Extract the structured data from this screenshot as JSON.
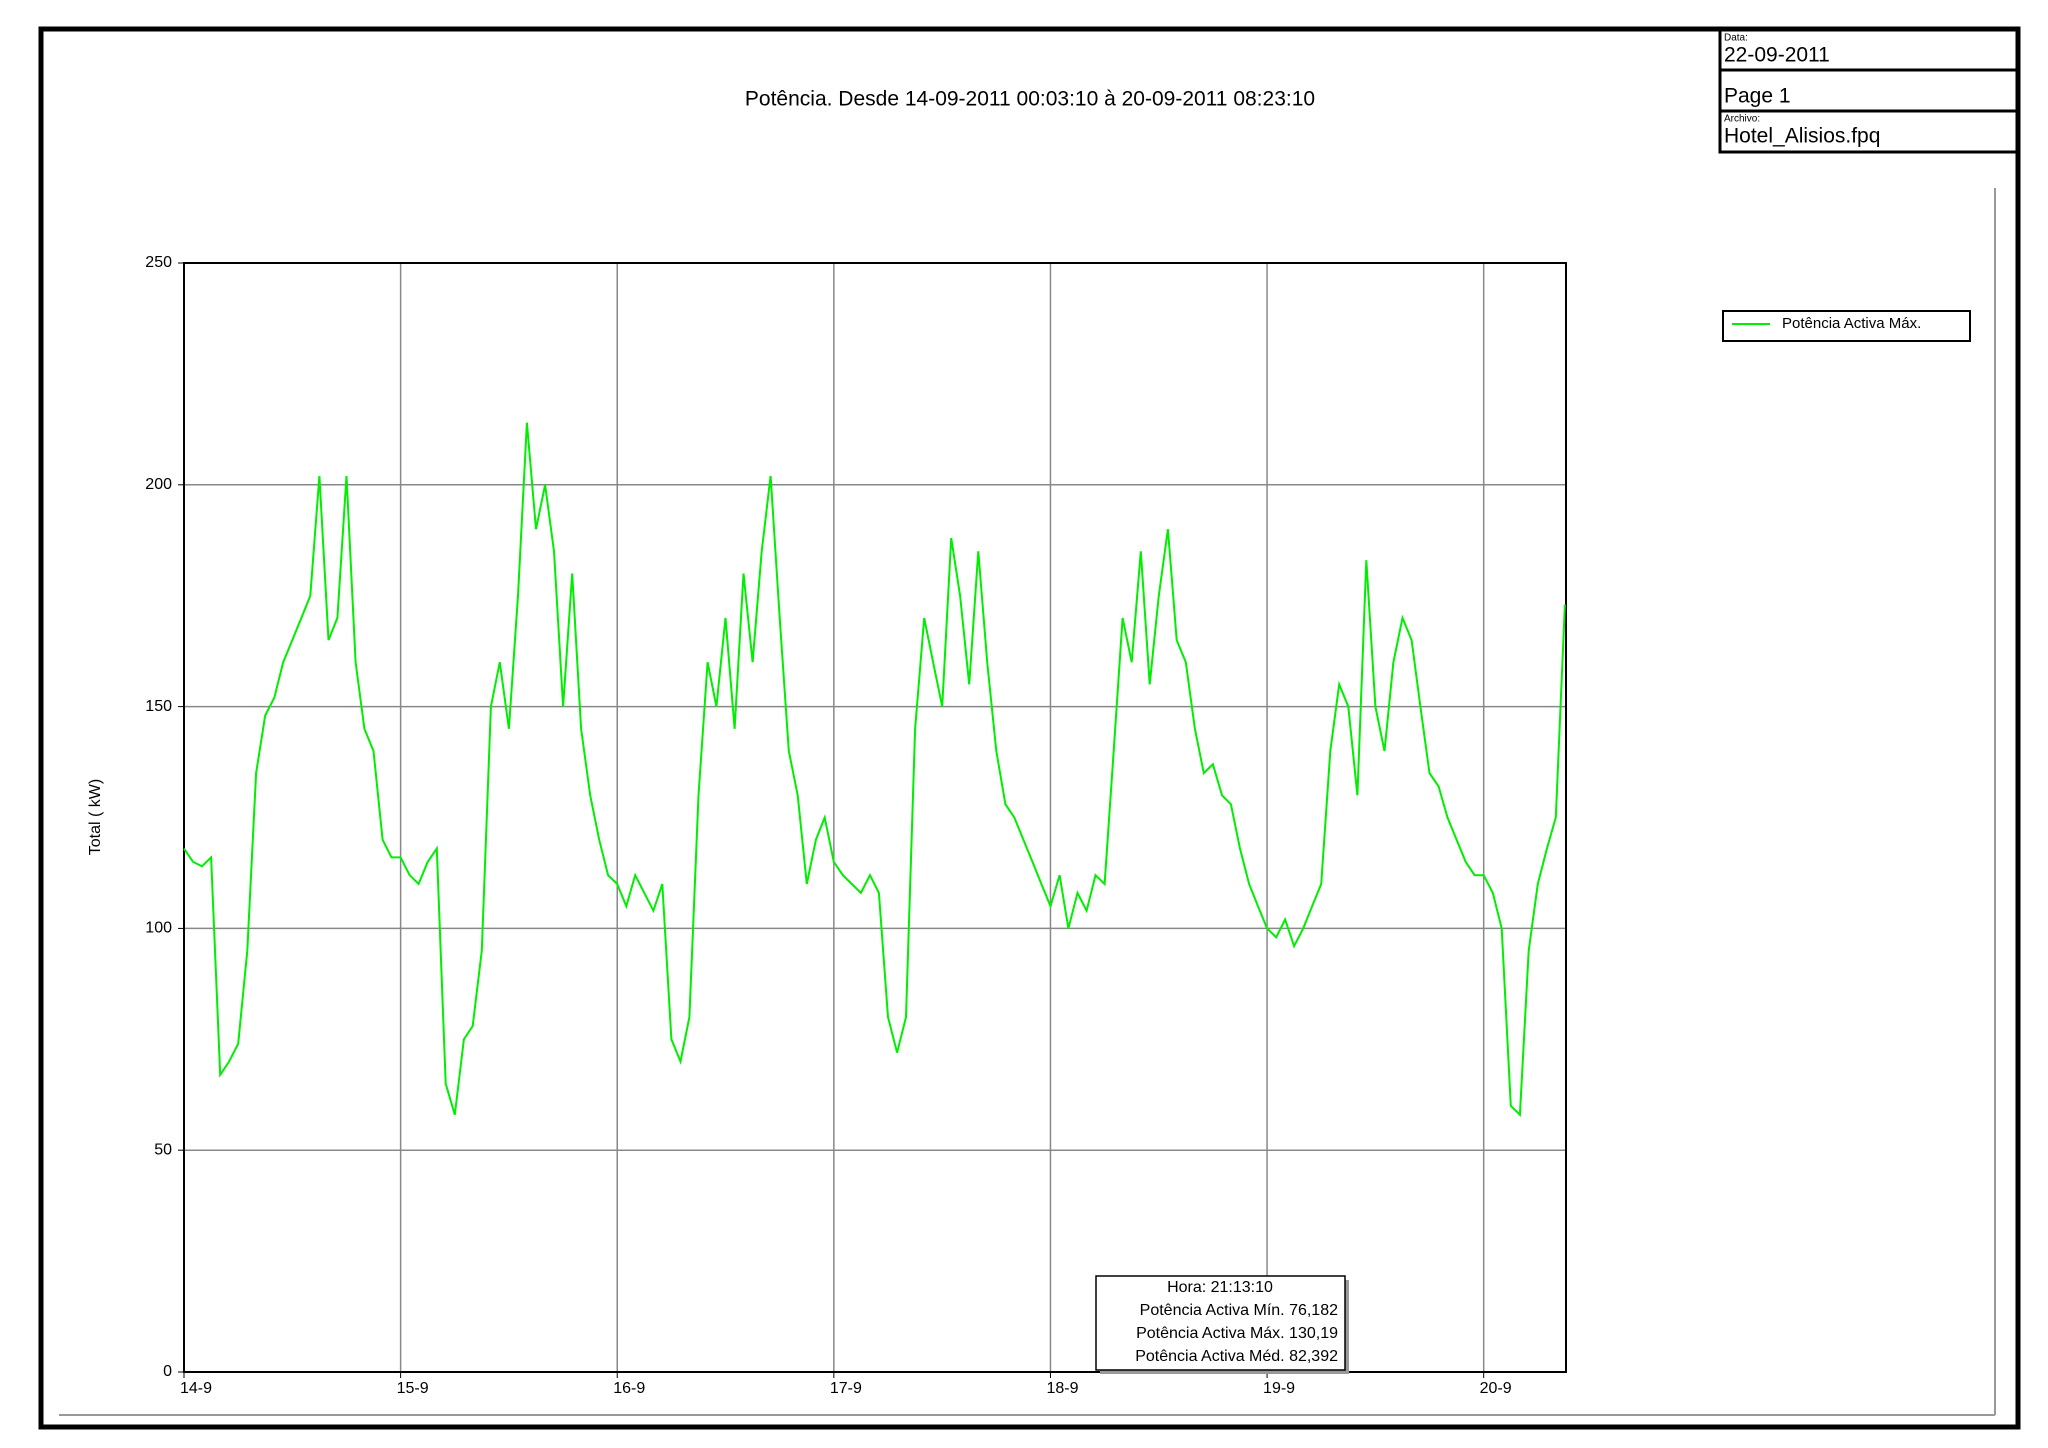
{
  "info": {
    "date_label": "Data:",
    "date": "22-09-2011",
    "page": "Page 1",
    "file_label": "Archivo:",
    "file": "Hotel_Alisios.fpq"
  },
  "chart_data": {
    "type": "line",
    "title": "Potência. Desde 14-09-2011 00:03:10 à 20-09-2011 08:23:10",
    "y_label": "Total ( kW)",
    "x": [
      14,
      14.042,
      14.083,
      14.125,
      14.167,
      14.208,
      14.25,
      14.292,
      14.333,
      14.375,
      14.417,
      14.458,
      14.5,
      14.542,
      14.583,
      14.625,
      14.667,
      14.708,
      14.75,
      14.792,
      14.833,
      14.875,
      14.917,
      14.958,
      15,
      15.042,
      15.083,
      15.125,
      15.167,
      15.208,
      15.25,
      15.292,
      15.333,
      15.375,
      15.417,
      15.458,
      15.5,
      15.542,
      15.583,
      15.625,
      15.667,
      15.708,
      15.75,
      15.792,
      15.833,
      15.875,
      15.917,
      15.958,
      16,
      16.042,
      16.083,
      16.125,
      16.167,
      16.208,
      16.25,
      16.292,
      16.333,
      16.375,
      16.417,
      16.458,
      16.5,
      16.542,
      16.583,
      16.625,
      16.667,
      16.708,
      16.75,
      16.792,
      16.833,
      16.875,
      16.917,
      16.958,
      17,
      17.042,
      17.083,
      17.125,
      17.167,
      17.208,
      17.25,
      17.292,
      17.333,
      17.375,
      17.417,
      17.458,
      17.5,
      17.542,
      17.583,
      17.625,
      17.667,
      17.708,
      17.75,
      17.792,
      17.833,
      17.875,
      17.917,
      17.958,
      18,
      18.042,
      18.083,
      18.125,
      18.167,
      18.208,
      18.25,
      18.292,
      18.333,
      18.375,
      18.417,
      18.458,
      18.5,
      18.542,
      18.583,
      18.625,
      18.667,
      18.708,
      18.75,
      18.792,
      18.833,
      18.875,
      18.917,
      18.958,
      19,
      19.042,
      19.083,
      19.125,
      19.167,
      19.208,
      19.25,
      19.292,
      19.333,
      19.375,
      19.417,
      19.458,
      19.5,
      19.542,
      19.583,
      19.625,
      19.667,
      19.708,
      19.75,
      19.792,
      19.833,
      19.875,
      19.917,
      19.958,
      20,
      20.042,
      20.083,
      20.125,
      20.167,
      20.208,
      20.25,
      20.292,
      20.333,
      20.375
    ],
    "series": [
      {
        "name": "Potência Activa Máx.",
        "color": "#00ee00",
        "values": [
          118,
          115,
          114,
          116,
          67,
          70,
          74,
          95,
          135,
          148,
          152,
          160,
          165,
          170,
          175,
          202,
          165,
          170,
          202,
          160,
          145,
          140,
          120,
          116,
          116,
          112,
          110,
          115,
          118,
          65,
          58,
          75,
          78,
          95,
          150,
          160,
          145,
          175,
          214,
          190,
          200,
          185,
          150,
          180,
          145,
          130,
          120,
          112,
          110,
          105,
          112,
          108,
          104,
          110,
          75,
          70,
          80,
          130,
          160,
          150,
          170,
          145,
          180,
          160,
          185,
          202,
          170,
          140,
          130,
          110,
          120,
          125,
          115,
          112,
          110,
          108,
          112,
          108,
          80,
          72,
          80,
          145,
          170,
          160,
          150,
          188,
          175,
          155,
          185,
          160,
          140,
          128,
          125,
          120,
          115,
          110,
          105,
          112,
          100,
          108,
          104,
          112,
          110,
          140,
          170,
          160,
          185,
          155,
          175,
          190,
          165,
          160,
          145,
          135,
          137,
          130,
          128,
          118,
          110,
          105,
          100,
          98,
          102,
          96,
          100,
          105,
          110,
          140,
          155,
          150,
          130,
          183,
          150,
          140,
          160,
          170,
          165,
          150,
          135,
          132,
          125,
          120,
          115,
          112,
          112,
          108,
          100,
          60,
          58,
          95,
          110,
          118,
          125,
          173
        ]
      }
    ],
    "xlim": [
      14,
      20.38
    ],
    "xticks": [
      {
        "value": 14,
        "label": "14-9"
      },
      {
        "value": 15,
        "label": "15-9"
      },
      {
        "value": 16,
        "label": "16-9"
      },
      {
        "value": 17,
        "label": "17-9"
      },
      {
        "value": 18,
        "label": "18-9"
      },
      {
        "value": 19,
        "label": "19-9"
      },
      {
        "value": 20,
        "label": "20-9"
      }
    ],
    "ylim": [
      0,
      250
    ],
    "yticks": [
      0,
      50,
      100,
      150,
      200,
      250
    ],
    "grid": true,
    "legend": "right",
    "tooltip": [
      "Hora: 21:13:10",
      "Potência Activa Mín. 76,182",
      "Potência Activa Máx. 130,19",
      "Potência Activa Méd. 82,392"
    ]
  }
}
